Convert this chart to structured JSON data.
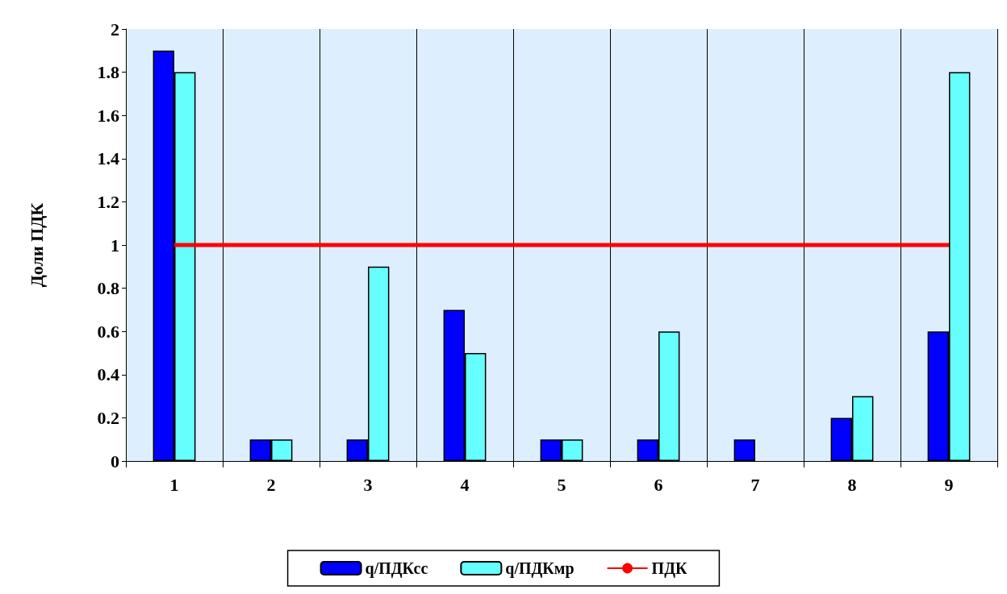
{
  "chart_data": {
    "type": "bar",
    "ylabel": "Доли ПДК",
    "categories": [
      "1",
      "2",
      "3",
      "4",
      "5",
      "6",
      "7",
      "8",
      "9"
    ],
    "series": [
      {
        "name": "q/ПДКсс",
        "color": "#0000ff",
        "values": [
          1.9,
          0.1,
          0.1,
          0.7,
          0.1,
          0.1,
          0.1,
          0.2,
          0.6
        ]
      },
      {
        "name": "q/ПДКмр",
        "color": "#66ffff",
        "values": [
          1.8,
          0.1,
          0.9,
          0.5,
          0.1,
          0.6,
          null,
          0.3,
          1.8
        ]
      },
      {
        "name": "ПДК",
        "type": "line",
        "color": "#ff0000",
        "values": [
          1,
          1,
          1,
          1,
          1,
          1,
          1,
          1,
          1
        ]
      }
    ],
    "ylim": [
      0,
      2
    ],
    "yticks": [
      0,
      0.2,
      0.4,
      0.6,
      0.8,
      1,
      1.2,
      1.4,
      1.6,
      1.8,
      2
    ],
    "grid": "x",
    "legend": "bottom",
    "marker": "none"
  }
}
